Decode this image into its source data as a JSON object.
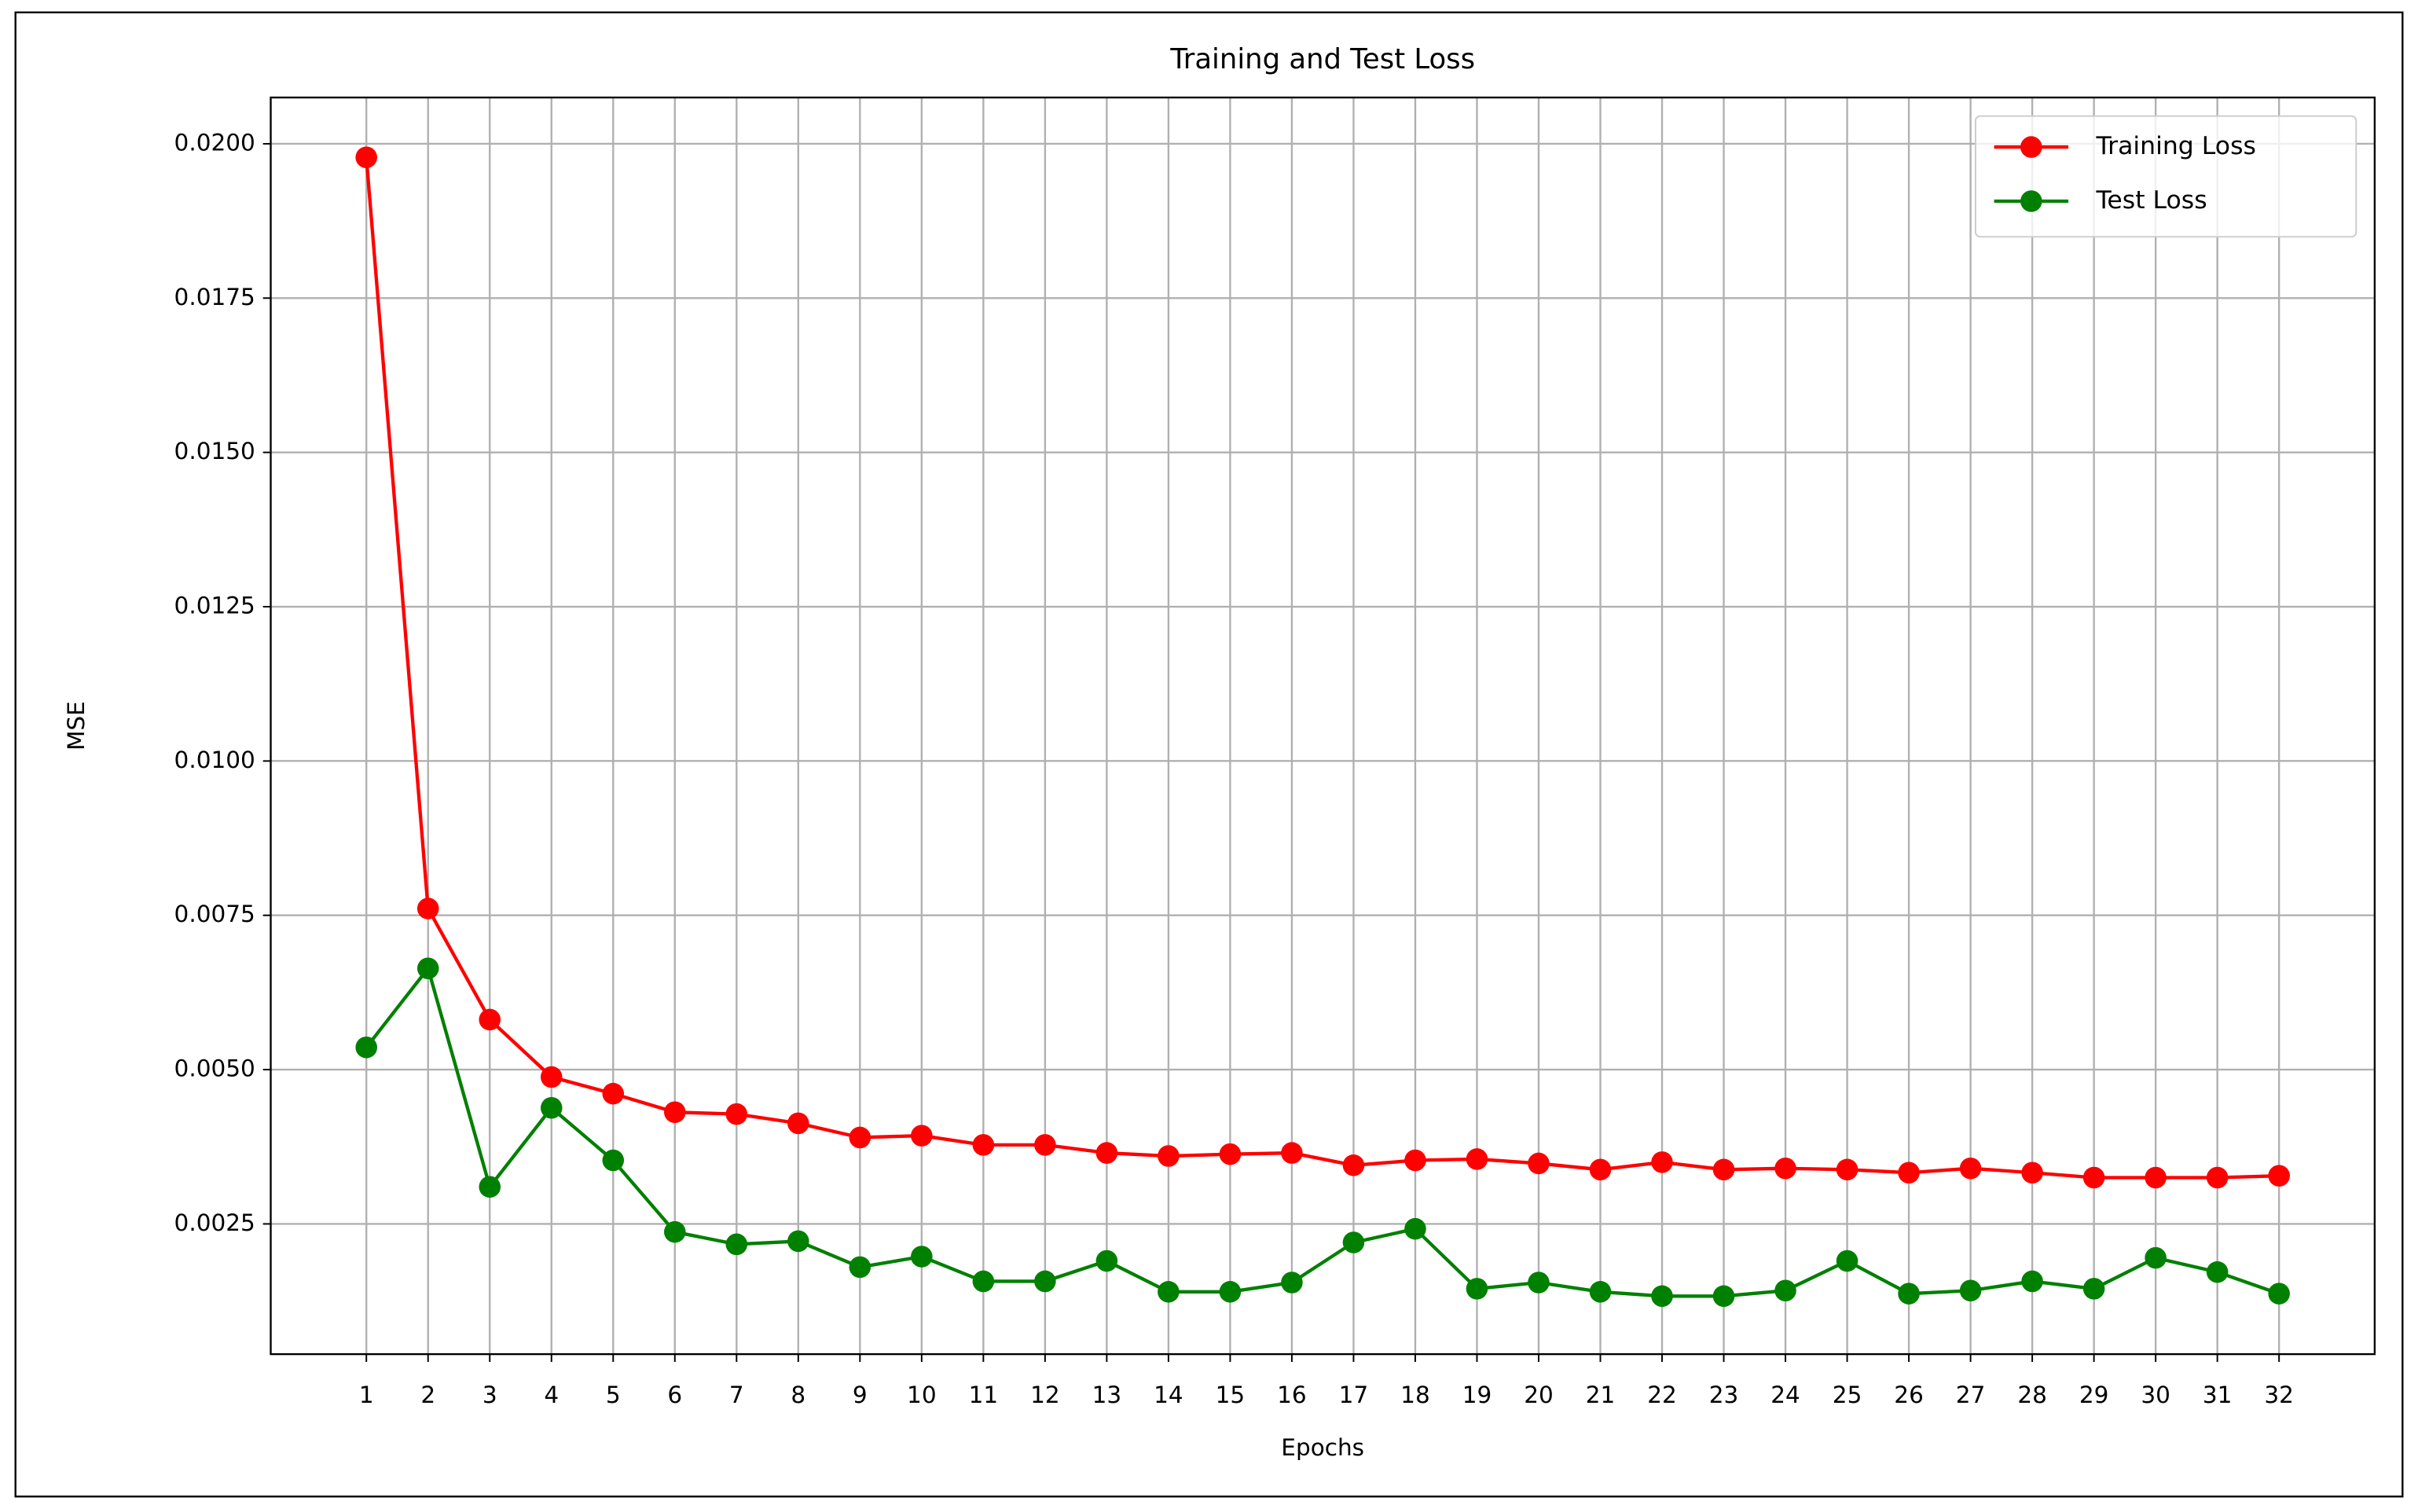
{
  "chart_data": {
    "type": "line",
    "title": "Training and Test Loss",
    "x_label": "Epochs",
    "y_label": "MSE",
    "x": [
      1,
      2,
      3,
      4,
      5,
      6,
      7,
      8,
      9,
      10,
      11,
      12,
      13,
      14,
      15,
      16,
      17,
      18,
      19,
      20,
      21,
      22,
      23,
      24,
      25,
      26,
      27,
      28,
      29,
      30,
      31,
      32
    ],
    "xlim": [
      -0.55,
      33.55
    ],
    "xticks": [
      1,
      2,
      3,
      4,
      5,
      6,
      7,
      8,
      9,
      10,
      11,
      12,
      13,
      14,
      15,
      16,
      17,
      18,
      19,
      20,
      21,
      22,
      23,
      24,
      25,
      26,
      27,
      28,
      29,
      30,
      31,
      32
    ],
    "ylim": [
      0.00039,
      0.02075
    ],
    "yticks": [
      {
        "value": 0.0025,
        "label": "0.0025"
      },
      {
        "value": 0.005,
        "label": "0.0050"
      },
      {
        "value": 0.0075,
        "label": "0.0075"
      },
      {
        "value": 0.01,
        "label": "0.0100"
      },
      {
        "value": 0.0125,
        "label": "0.0125"
      },
      {
        "value": 0.015,
        "label": "0.0150"
      },
      {
        "value": 0.0175,
        "label": "0.0175"
      },
      {
        "value": 0.02,
        "label": "0.0200"
      }
    ],
    "grid": true,
    "legend": "upper right",
    "series": [
      {
        "name": "Training Loss",
        "color": "#ff0000",
        "values": [
          0.01978,
          0.00761,
          0.00581,
          0.00488,
          0.00461,
          0.00431,
          0.00428,
          0.00413,
          0.0039,
          0.00393,
          0.00378,
          0.00378,
          0.00365,
          0.0036,
          0.00363,
          0.00365,
          0.00345,
          0.00353,
          0.00355,
          0.00348,
          0.00338,
          0.0035,
          0.00338,
          0.0034,
          0.00338,
          0.00333,
          0.0034,
          0.00333,
          0.00325,
          0.00325,
          0.00325,
          0.00328
        ]
      },
      {
        "name": "Test Loss",
        "color": "#008000",
        "values": [
          0.00536,
          0.00664,
          0.0031,
          0.00438,
          0.00353,
          0.00237,
          0.00217,
          0.00222,
          0.0018,
          0.00197,
          0.00157,
          0.00157,
          0.0019,
          0.0014,
          0.0014,
          0.00155,
          0.0022,
          0.00242,
          0.00145,
          0.00155,
          0.0014,
          0.00133,
          0.00133,
          0.00142,
          0.0019,
          0.00137,
          0.00142,
          0.00157,
          0.00145,
          0.00195,
          0.00172,
          0.00137
        ]
      }
    ]
  }
}
